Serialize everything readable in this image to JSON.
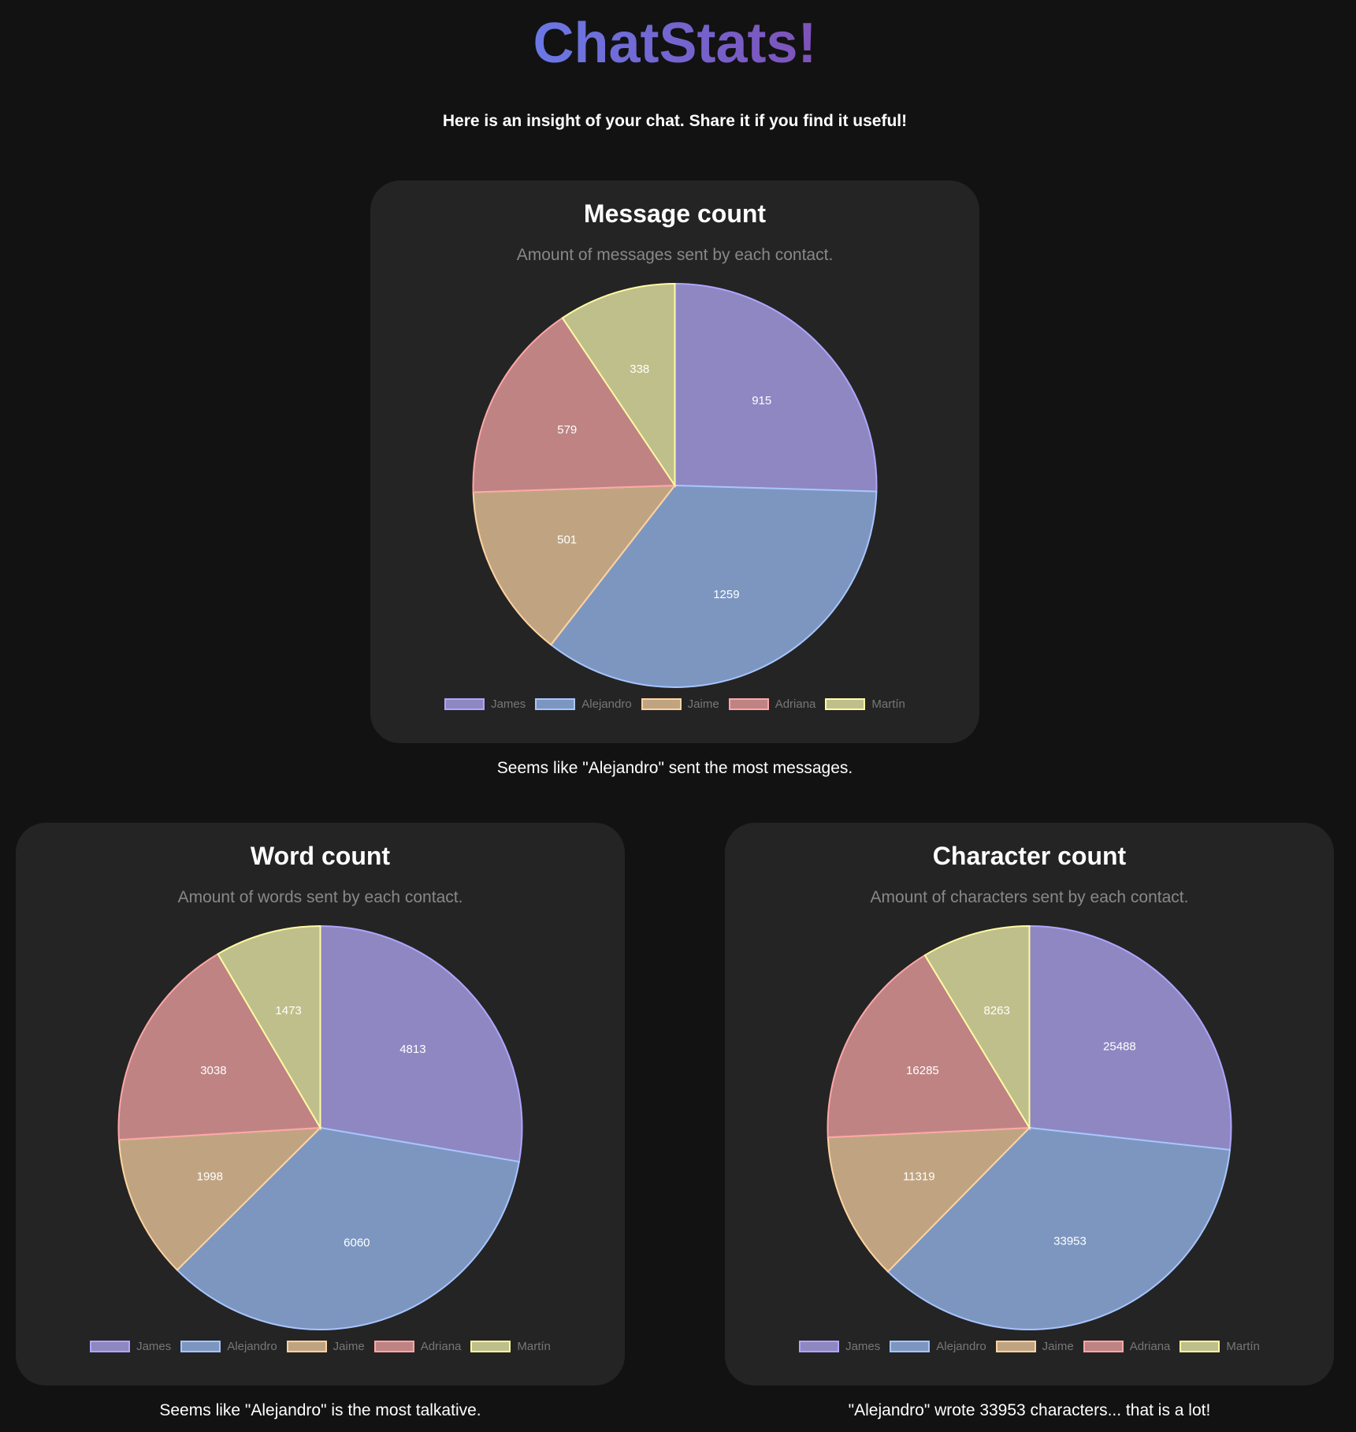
{
  "header": {
    "title": "ChatStats!",
    "intro": "Here is an insight of your chat. Share it if you find it useful!"
  },
  "colors": {
    "fills": [
      "#8f87c1",
      "#7d96c0",
      "#c0a481",
      "#bf8384",
      "#bfbf8b"
    ],
    "borders": [
      "#ada6ff",
      "#a7c5ff",
      "#ffd3a1",
      "#ffa7a8",
      "#fffaa3"
    ]
  },
  "cards": [
    {
      "title": "Message count",
      "subtitle": "Amount of messages sent by each contact.",
      "caption": "Seems like \"Alejandro\" sent the most messages."
    },
    {
      "title": "Word count",
      "subtitle": "Amount of words sent by each contact.",
      "caption": "Seems like \"Alejandro\" is the most talkative."
    },
    {
      "title": "Character count",
      "subtitle": "Amount of characters sent by each contact.",
      "caption": "\"Alejandro\" wrote 33953 characters... that is a lot!"
    }
  ],
  "chart_data": [
    {
      "type": "pie",
      "title": "Message count",
      "subtitle": "Amount of messages sent by each contact.",
      "categories": [
        "James",
        "Alejandro",
        "Jaime",
        "Adriana",
        "Martín"
      ],
      "values": [
        915,
        1259,
        501,
        579,
        338
      ],
      "legend": "bottom"
    },
    {
      "type": "pie",
      "title": "Word count",
      "subtitle": "Amount of words sent by each contact.",
      "categories": [
        "James",
        "Alejandro",
        "Jaime",
        "Adriana",
        "Martín"
      ],
      "values": [
        4813,
        6060,
        1998,
        3038,
        1473
      ],
      "legend": "bottom"
    },
    {
      "type": "pie",
      "title": "Character count",
      "subtitle": "Amount of characters sent by each contact.",
      "categories": [
        "James",
        "Alejandro",
        "Jaime",
        "Adriana",
        "Martín"
      ],
      "values": [
        25488,
        33953,
        11319,
        16285,
        8263
      ],
      "legend": "bottom"
    }
  ]
}
